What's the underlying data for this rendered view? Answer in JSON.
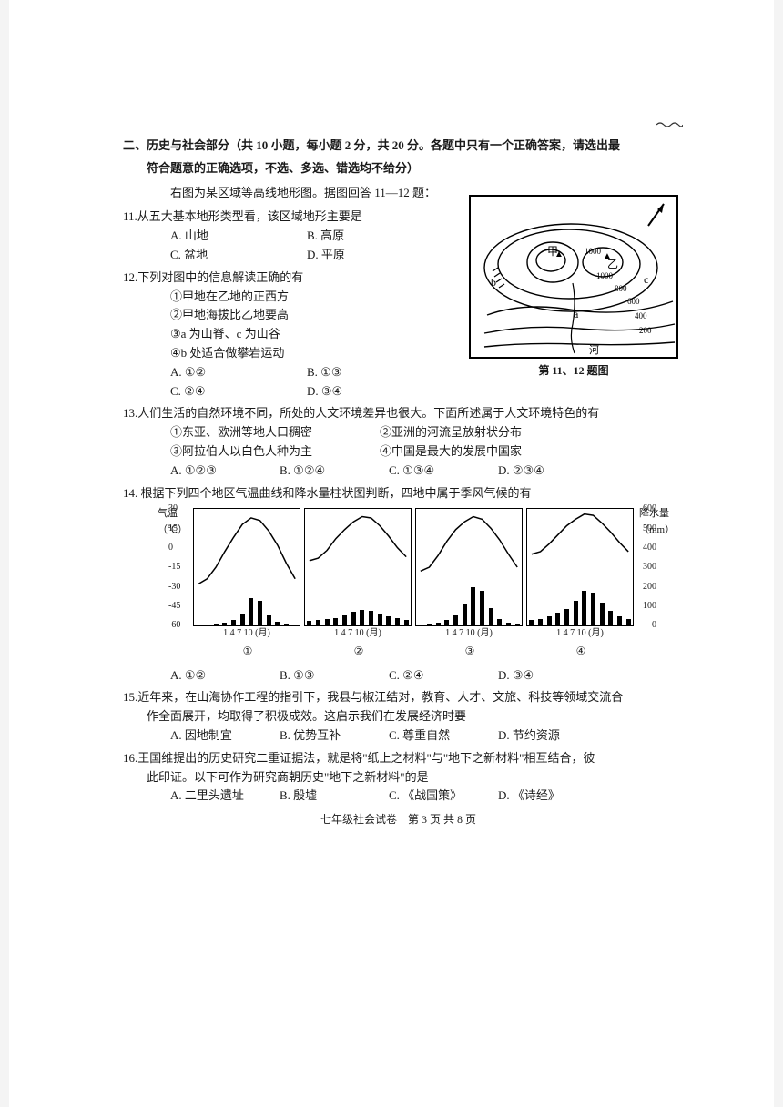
{
  "squiggle_color": "#333333",
  "section": {
    "line1": "二、历史与社会部分（共 10 小题，每小题 2 分，共 20 分。各题中只有一个正确答案，请选出最",
    "line2": "符合题意的正确选项，不选、多选、错选均不给分）"
  },
  "context_note": "右图为某区域等高线地形图。据图回答 11—12 题：",
  "q11": {
    "stem": "11.从五大基本地形类型看，该区域地形主要是",
    "A": "A. 山地",
    "B": "B. 高原",
    "C": "C. 盆地",
    "D": "D. 平原"
  },
  "q12": {
    "stem": "12.下列对图中的信息解读正确的有",
    "s1": "①甲地在乙地的正西方",
    "s2": "②甲地海拔比乙地要高",
    "s3": "③a 为山脊、c 为山谷",
    "s4": "④b 处适合做攀岩运动",
    "A": "A. ①②",
    "B": "B. ①③",
    "C": "C. ②④",
    "D": "D. ③④"
  },
  "map_figure": {
    "caption": "第 11、12 题图",
    "contour_values": [
      "1000",
      "1000",
      "800",
      "600",
      "400",
      "200"
    ],
    "labels": {
      "jia": "甲",
      "yi": "乙",
      "a": "a",
      "b": "b",
      "c": "c",
      "river": "河"
    },
    "north_arrow": true,
    "line_color": "#000000",
    "bg_color": "#ffffff"
  },
  "q13": {
    "stem": "13.人们生活的自然环境不同，所处的人文环境差异也很大。下面所述属于人文环境特色的有",
    "s1": "①东亚、欧洲等地人口稠密",
    "s2": "②亚洲的河流呈放射状分布",
    "s3": "③阿拉伯人以白色人种为主",
    "s4": "④中国是最大的发展中国家",
    "A": "A. ①②③",
    "B": "B. ①②④",
    "C": "C. ①③④",
    "D": "D. ②③④"
  },
  "q14": {
    "stem": "14. 根据下列四个地区气温曲线和降水量柱状图判断，四地中属于季风气候的有",
    "chart": {
      "type": "combo-bar-line",
      "ylabel_left": "气温（℃）",
      "ylabel_right": "降水量（mm）",
      "left_ticks": [
        30,
        15,
        0,
        -15,
        -30,
        -45,
        -60
      ],
      "right_ticks": [
        600,
        500,
        400,
        300,
        200,
        100,
        0
      ],
      "x_ticks_label": "1   4   7   10 (月)",
      "panel_labels": [
        "①",
        "②",
        "③",
        "④"
      ],
      "bar_color": "#000000",
      "line_color": "#000000",
      "grid_color": "#000000",
      "bg_color": "#ffffff",
      "panels": [
        {
          "temp_curve": [
            -28,
            -24,
            -15,
            -3,
            8,
            18,
            23,
            21,
            13,
            2,
            -12,
            -24
          ],
          "precip_bars": [
            5,
            6,
            10,
            18,
            32,
            60,
            140,
            130,
            55,
            22,
            10,
            6
          ]
        },
        {
          "temp_curve": [
            -10,
            -8,
            -2,
            7,
            14,
            20,
            24,
            23,
            17,
            9,
            0,
            -7
          ],
          "precip_bars": [
            25,
            28,
            35,
            40,
            55,
            70,
            80,
            78,
            60,
            48,
            38,
            28
          ]
        },
        {
          "temp_curve": [
            -18,
            -15,
            -6,
            5,
            14,
            20,
            24,
            22,
            15,
            6,
            -5,
            -15
          ],
          "precip_bars": [
            8,
            10,
            18,
            30,
            55,
            110,
            200,
            180,
            90,
            35,
            15,
            9
          ]
        },
        {
          "temp_curve": [
            -5,
            -3,
            3,
            10,
            17,
            22,
            26,
            25,
            19,
            12,
            4,
            -3
          ],
          "precip_bars": [
            30,
            35,
            50,
            65,
            85,
            130,
            180,
            170,
            120,
            75,
            50,
            35
          ]
        }
      ]
    },
    "A": "A. ①②",
    "B": "B. ①③",
    "C": "C. ②④",
    "D": "D. ③④"
  },
  "q15": {
    "stem1": "15.近年来，在山海协作工程的指引下，我县与椒江结对，教育、人才、文旅、科技等领域交流合",
    "stem2": "作全面展开，均取得了积极成效。这启示我们在发展经济时要",
    "A": "A. 因地制宜",
    "B": "B. 优势互补",
    "C": "C. 尊重自然",
    "D": "D. 节约资源"
  },
  "q16": {
    "stem1": "16.王国维提出的历史研究二重证据法，就是将\"纸上之材料\"与\"地下之新材料\"相互结合，彼",
    "stem2": "此印证。以下可作为研究商朝历史\"地下之新材料\"的是",
    "A": "A. 二里头遗址",
    "B": "B. 殷墟",
    "C": "C. 《战国策》",
    "D": "D. 《诗经》"
  },
  "footer": "七年级社会试卷　第 3 页 共 8 页"
}
